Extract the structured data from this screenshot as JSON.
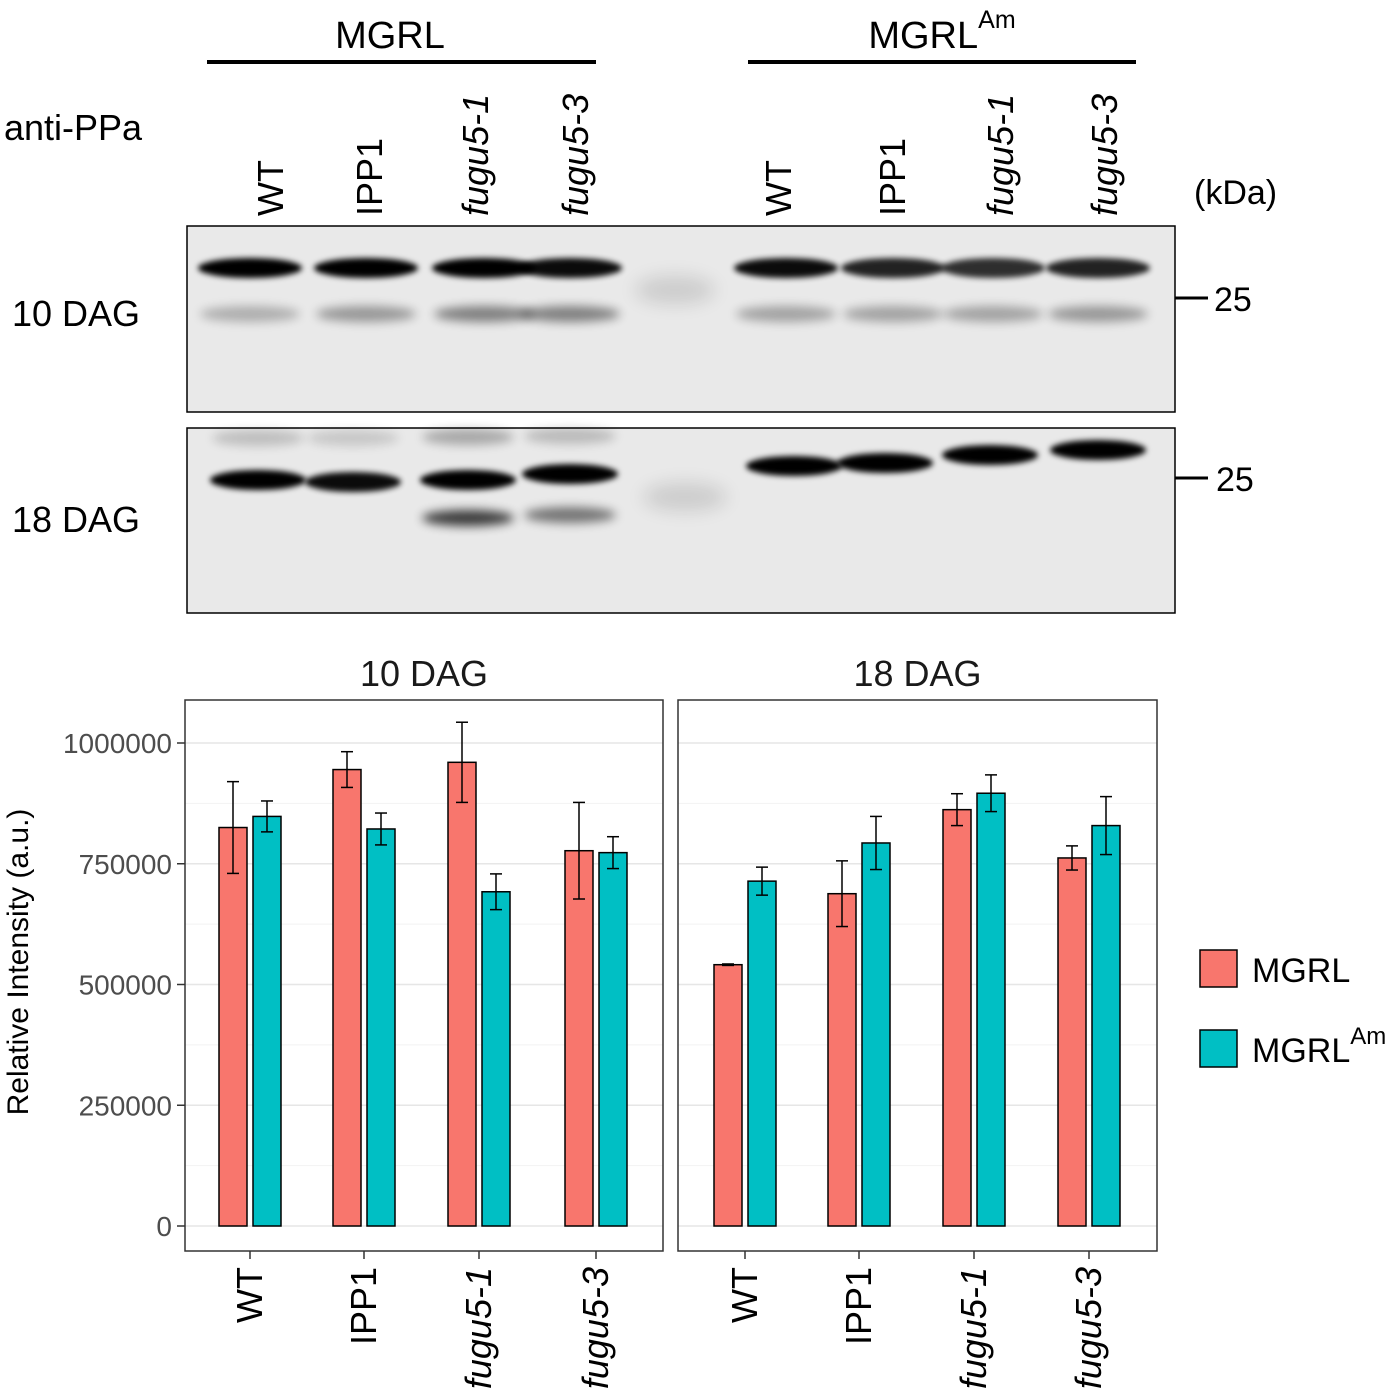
{
  "blot": {
    "antibody_label": "anti-PPa",
    "group_labels": [
      {
        "text": "MGRL",
        "sup": ""
      },
      {
        "text": "MGRL",
        "sup": "Am"
      }
    ],
    "lane_labels": [
      {
        "prefix": "",
        "italic": "",
        "text": "WT"
      },
      {
        "prefix": "",
        "italic": "",
        "text": "IPP1"
      },
      {
        "prefix": "",
        "italic": "fugu5-1",
        "text": ""
      },
      {
        "prefix": "",
        "italic": "fugu5-3",
        "text": ""
      },
      {
        "prefix": "",
        "italic": "",
        "text": "WT"
      },
      {
        "prefix": "",
        "italic": "",
        "text": "IPP1"
      },
      {
        "prefix": "",
        "italic": "fugu5-1",
        "text": ""
      },
      {
        "prefix": "",
        "italic": "fugu5-3",
        "text": ""
      }
    ],
    "unit_label": "(kDa)",
    "rows": [
      {
        "label": "10 DAG",
        "marker": "25"
      },
      {
        "label": "18 DAG",
        "marker": "25"
      }
    ]
  },
  "chart_data": {
    "type": "bar",
    "ylabel": "Relative Intensity (a.u.)",
    "ylim": [
      0,
      1090000
    ],
    "yticks": [
      0,
      250000,
      500000,
      750000,
      1000000
    ],
    "ytick_labels": [
      "0",
      "250000",
      "500000",
      "750000",
      "1000000"
    ],
    "grid": true,
    "legend_position": "right",
    "series_colors": [
      "#F8766D",
      "#00BFC4"
    ],
    "legend": [
      {
        "text": "MGRL",
        "sup": ""
      },
      {
        "text": "MGRL",
        "sup": "Am"
      }
    ],
    "panels": [
      {
        "title": "10 DAG",
        "categories": [
          {
            "italic": "",
            "text": "WT"
          },
          {
            "italic": "",
            "text": "IPP1"
          },
          {
            "italic": "fugu5-1",
            "text": ""
          },
          {
            "italic": "fugu5-3",
            "text": ""
          }
        ],
        "series": [
          {
            "values": [
              825000,
              945000,
              960000,
              777000
            ],
            "errors": [
              95000,
              37000,
              83000,
              100000
            ]
          },
          {
            "values": [
              848000,
              822000,
              692000,
              773000
            ],
            "errors": [
              32000,
              33000,
              37000,
              33000
            ]
          }
        ]
      },
      {
        "title": "18 DAG",
        "categories": [
          {
            "italic": "",
            "text": "WT"
          },
          {
            "italic": "",
            "text": "IPP1"
          },
          {
            "italic": "fugu5-1",
            "text": ""
          },
          {
            "italic": "fugu5-3",
            "text": ""
          }
        ],
        "series": [
          {
            "values": [
              541000,
              688000,
              862000,
              762000
            ],
            "errors": [
              1500,
              68000,
              33000,
              25000
            ]
          },
          {
            "values": [
              714000,
              793000,
              896000,
              829000
            ],
            "errors": [
              29000,
              55000,
              38000,
              60000
            ]
          }
        ]
      }
    ]
  }
}
